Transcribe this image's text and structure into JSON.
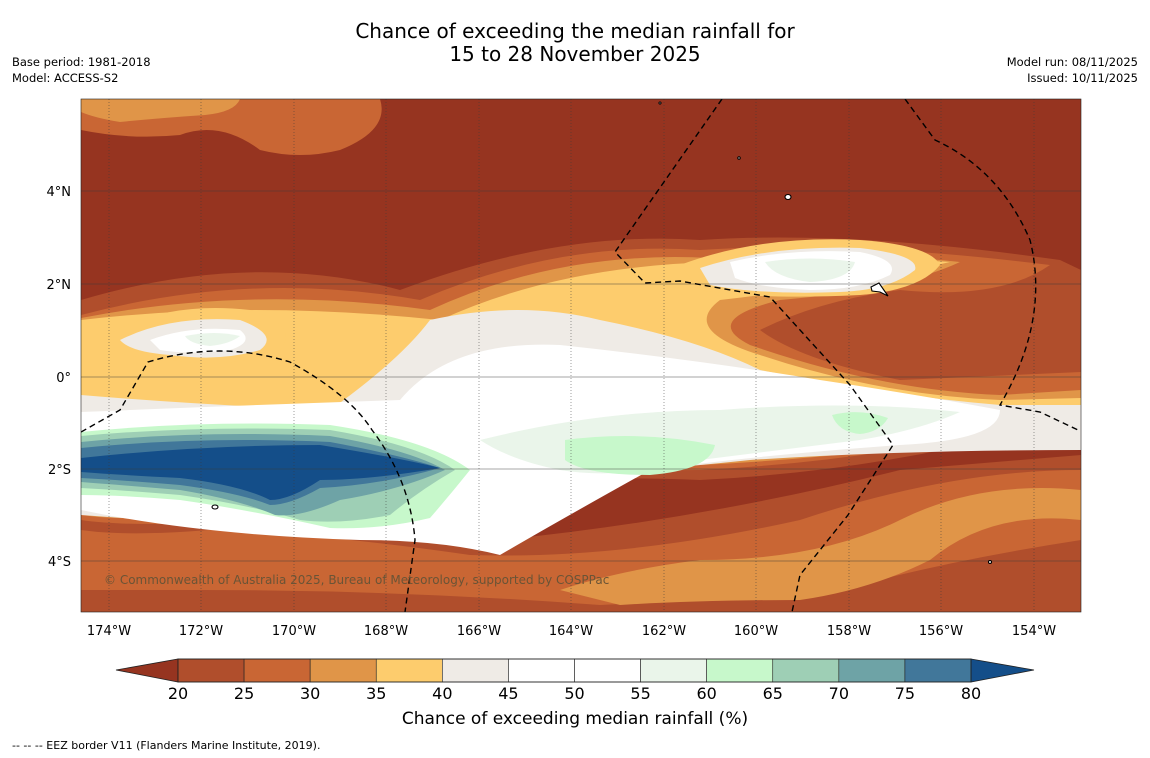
{
  "title": {
    "line1": "Chance of exceeding the median rainfall for",
    "line2": "15 to 28 November 2025"
  },
  "meta_left": {
    "base_period": "Base period: 1981-2018",
    "model": "Model: ACCESS-S2"
  },
  "meta_right": {
    "model_run": "Model run: 08/11/2025",
    "issued": "Issued: 10/11/2025"
  },
  "map": {
    "copyright": "© Commonwealth of Australia 2025, Bureau of Meteorology, supported by COSPPac",
    "lat_labels": [
      "4°N",
      "2°N",
      "0°",
      "2°S",
      "4°S"
    ],
    "lon_labels": [
      "174°W",
      "172°W",
      "170°W",
      "168°W",
      "166°W",
      "164°W",
      "162°W",
      "160°W",
      "158°W",
      "156°W",
      "154°W"
    ],
    "colors": {
      "p15": "#963420",
      "p20": "#b04e2c",
      "p25": "#c96634",
      "p30": "#e09548",
      "p35": "#fdcc6d",
      "p40": "#efebe6",
      "p45": "#ffffff",
      "p55": "#eaf5ea",
      "p60": "#c7f8cb",
      "p65": "#9ecfb5",
      "p70": "#6ea3a6",
      "p75": "#41779a",
      "p80": "#144e89"
    }
  },
  "colorbar": {
    "ticks": [
      "20",
      "25",
      "30",
      "35",
      "40",
      "45",
      "50",
      "55",
      "60",
      "65",
      "70",
      "75",
      "80"
    ],
    "colors": [
      "#b04e2c",
      "#c96634",
      "#e09548",
      "#fdcc6d",
      "#efebe6",
      "#ffffff",
      "#ffffff",
      "#eaf5ea",
      "#c7f8cb",
      "#9ecfb5",
      "#6ea3a6",
      "#41779a"
    ],
    "low_color": "#963420",
    "high_color": "#144e89",
    "title": "Chance of exceeding median rainfall (%)"
  },
  "footnote": "--  --  -- EEZ border V11 (Flanders Marine Institute, 2019)."
}
